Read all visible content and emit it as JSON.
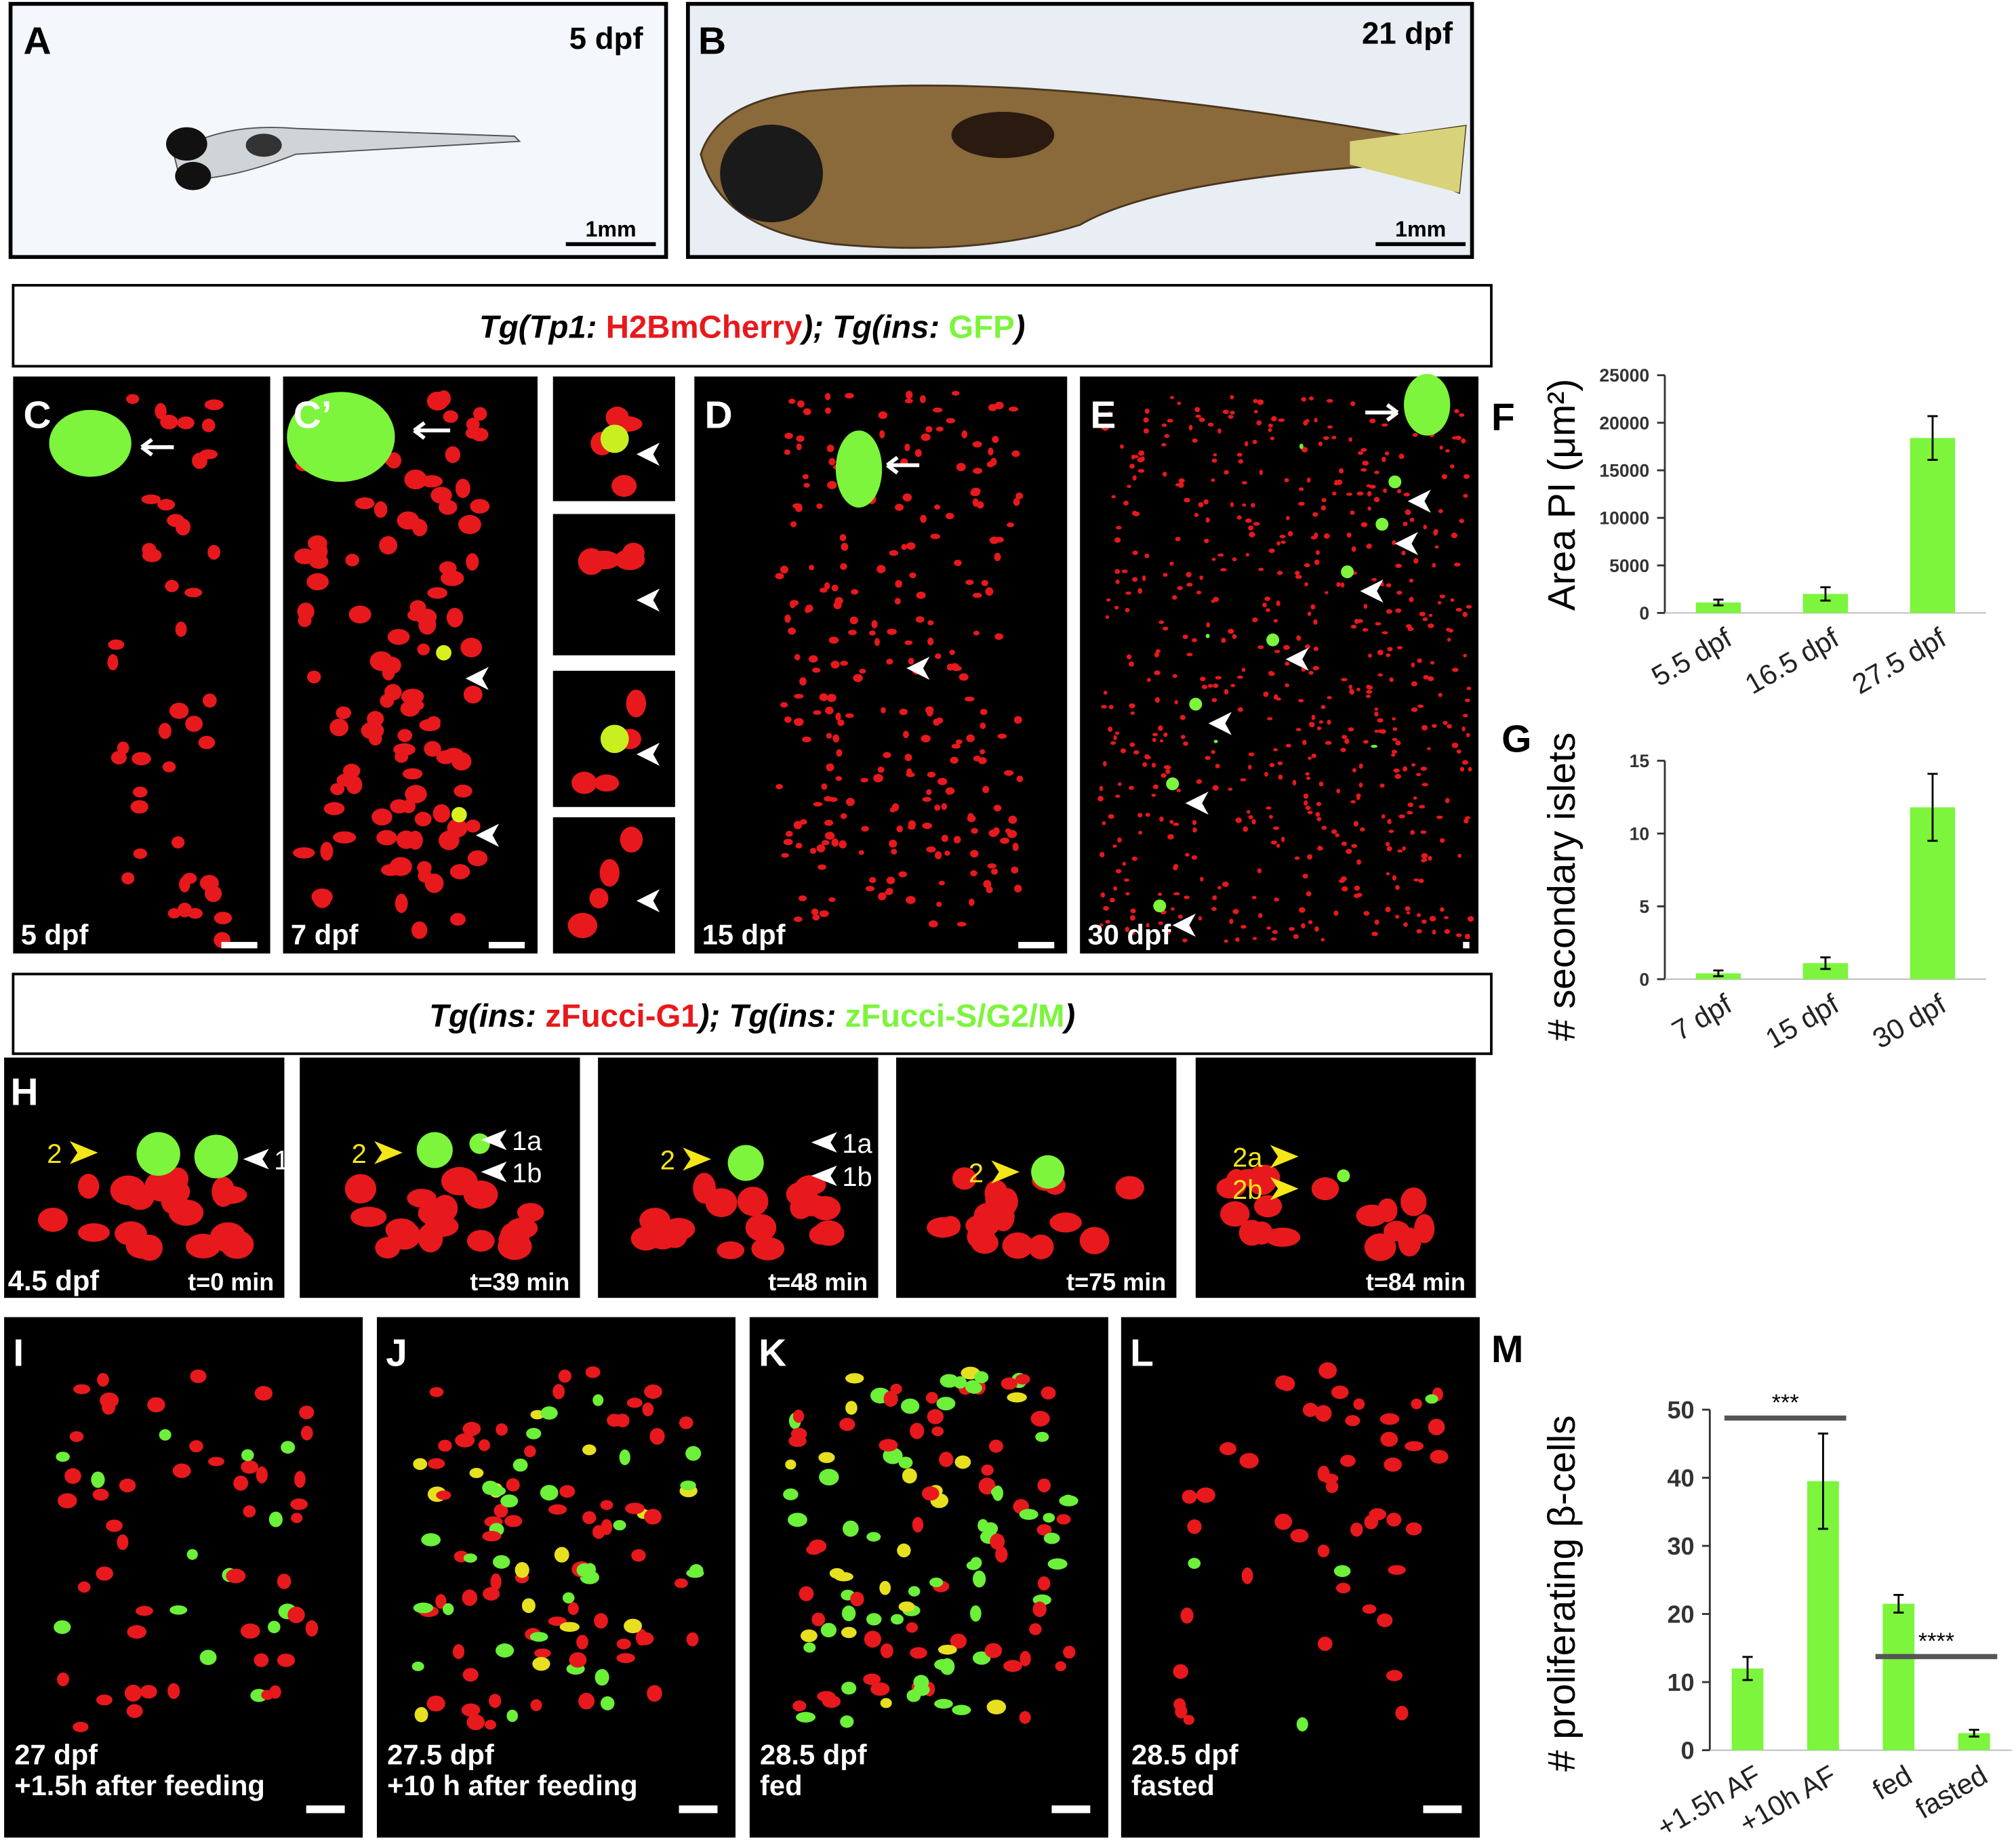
{
  "figure": {
    "panel_A": {
      "label": "A",
      "stage": "5 dpf",
      "scale_bar": "1mm"
    },
    "panel_B": {
      "label": "B",
      "stage": "21 dpf",
      "scale_bar": "1mm"
    },
    "header_1": [
      "Tg(Tp1: ",
      "H2BmCherry",
      "); Tg(ins: ",
      "GFP",
      ")"
    ],
    "panels_C_E": [
      {
        "label": "C",
        "stage": "5 dpf"
      },
      {
        "label": "C’",
        "stage": "7 dpf"
      },
      {
        "label": "D",
        "stage": "15 dpf"
      },
      {
        "label": "E",
        "stage": "30 dpf"
      }
    ],
    "header_2": [
      "Tg(ins: ",
      "zFucci-G1",
      "); Tg(ins: ",
      "zFucci-S/G2/M",
      ")"
    ],
    "panel_H": {
      "label": "H",
      "stage": "4.5 dpf",
      "frames": [
        {
          "time": "t=0 min",
          "cells": [
            "2",
            "1"
          ]
        },
        {
          "time": "t=39 min",
          "cells": [
            "2",
            "1a",
            "1b"
          ]
        },
        {
          "time": "t=48 min",
          "cells": [
            "2",
            "1a",
            "1b"
          ]
        },
        {
          "time": "t=75 min",
          "cells": [
            "2"
          ]
        },
        {
          "time": "t=84 min",
          "cells": [
            "2a",
            "2b"
          ]
        }
      ]
    },
    "panels_I_L": [
      {
        "label": "I",
        "caption": [
          "27 dpf",
          "+1.5h after feeding"
        ]
      },
      {
        "label": "J",
        "caption": [
          "27.5 dpf",
          "+10 h after feeding"
        ]
      },
      {
        "label": "K",
        "caption": [
          "28.5 dpf",
          "fed"
        ]
      },
      {
        "label": "L",
        "caption": [
          "28.5 dpf",
          "fasted"
        ]
      }
    ]
  },
  "chart_data": [
    {
      "type": "bar",
      "label": "F",
      "y_label": "Area PI (μm²)",
      "color": "#7cf53c",
      "categories": [
        "5.5 dpf",
        "16.5 dpf",
        "27.5 dpf"
      ],
      "values": [
        1100,
        2000,
        18400
      ],
      "errors": [
        300,
        700,
        2300
      ],
      "ylim": [
        0,
        25000
      ],
      "yticks": [
        0,
        5000,
        10000,
        15000,
        20000,
        25000
      ]
    },
    {
      "type": "bar",
      "label": "G",
      "y_label": "# secondary islets",
      "color": "#7cf53c",
      "categories": [
        "7 dpf",
        "15 dpf",
        "30 dpf"
      ],
      "values": [
        0.4,
        1.1,
        11.8
      ],
      "errors": [
        0.2,
        0.4,
        2.3
      ],
      "ylim": [
        0,
        15
      ],
      "yticks": [
        0,
        5,
        10,
        15
      ]
    },
    {
      "type": "bar",
      "label": "M",
      "y_label": "# proliferating β-cells",
      "color": "#7cf53c",
      "categories": [
        "+1.5h AF",
        "+10h AF",
        "fed",
        "fasted"
      ],
      "values": [
        12,
        39.5,
        21.5,
        2.5
      ],
      "errors": [
        1.7,
        7,
        1.3,
        0.5
      ],
      "ylim": [
        0,
        50
      ],
      "yticks": [
        0,
        10,
        20,
        30,
        40,
        50
      ],
      "annotations": [
        "***",
        "****"
      ]
    }
  ]
}
